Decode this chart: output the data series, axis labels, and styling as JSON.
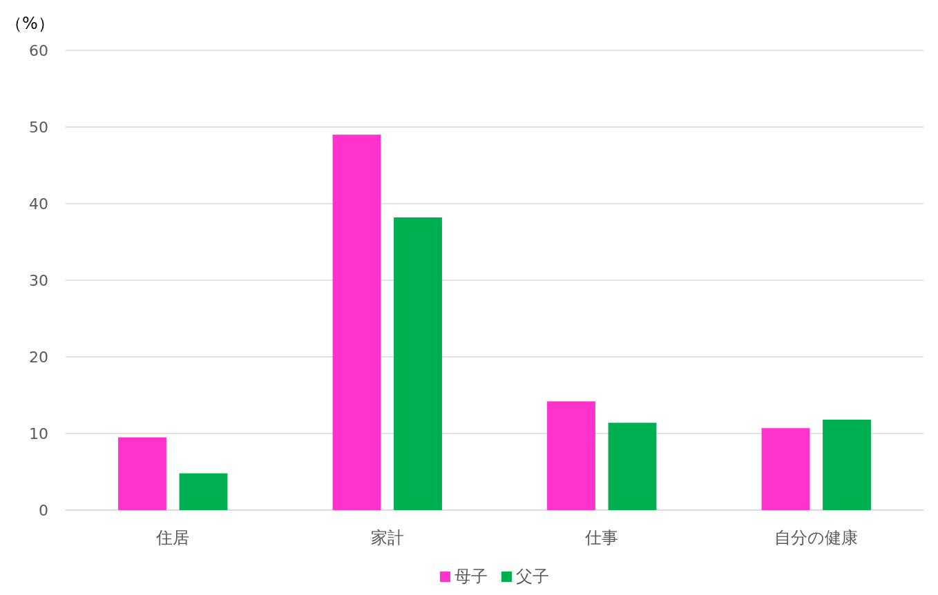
{
  "chart_data": {
    "type": "bar",
    "ylabel": "（%）",
    "categories": [
      "住居",
      "家計",
      "仕事",
      "自分の健康"
    ],
    "series": [
      {
        "name": "母子",
        "color": "#ff33cc",
        "values": [
          9.5,
          49.0,
          14.2,
          10.7
        ]
      },
      {
        "name": "父子",
        "color": "#00b050",
        "values": [
          4.8,
          38.2,
          11.4,
          11.8
        ]
      }
    ],
    "ylim": [
      0,
      60
    ],
    "yticks": [
      0,
      10,
      20,
      30,
      40,
      50,
      60
    ],
    "grid": "y",
    "legend": "bottom"
  }
}
